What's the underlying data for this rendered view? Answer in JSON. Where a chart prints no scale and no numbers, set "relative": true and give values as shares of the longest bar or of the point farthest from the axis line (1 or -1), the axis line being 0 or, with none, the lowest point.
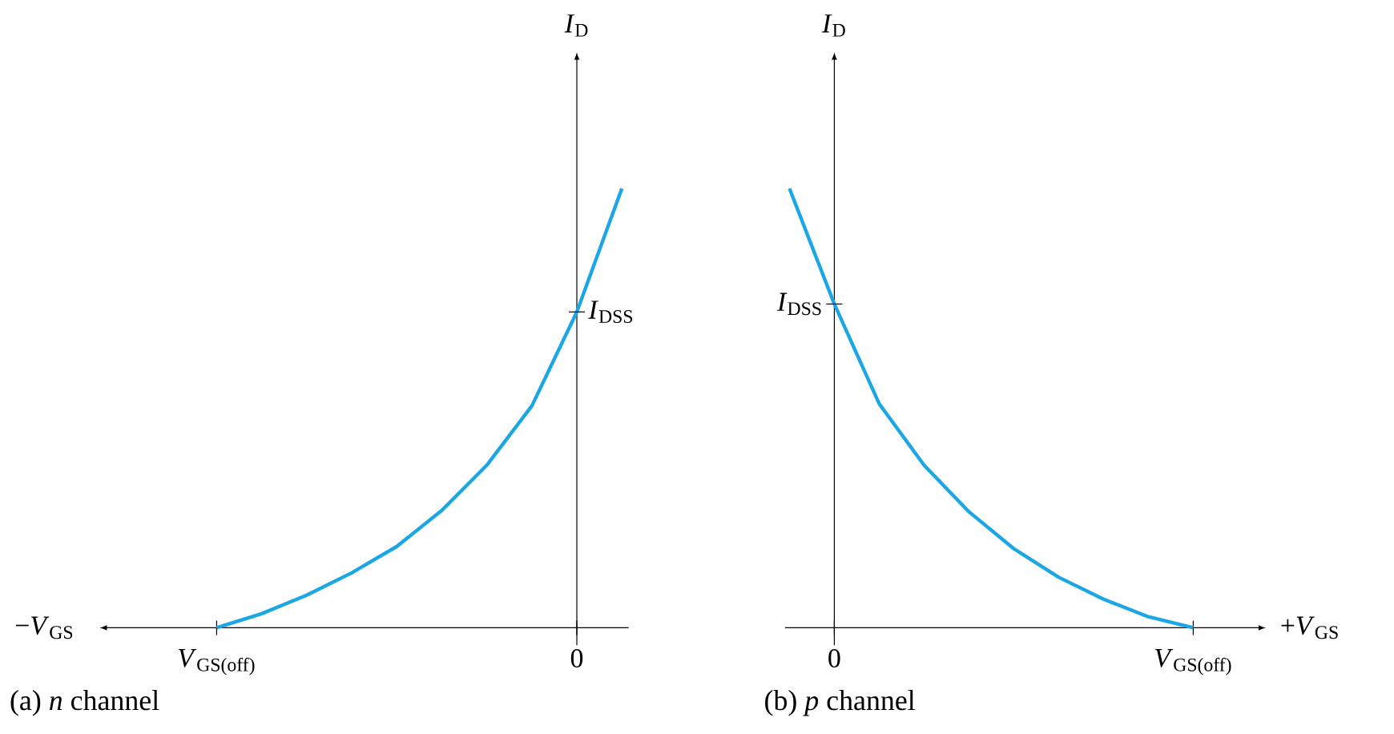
{
  "chart_data": [
    {
      "type": "line",
      "title": "(a) *n* channel",
      "xlabel": "−*V*$_{GS}$",
      "ylabel": "*I*$_{D}$",
      "relative": true,
      "categories": [
        "*V*$_{GS(off)}$",
        null,
        null,
        null,
        null,
        null,
        null,
        null,
        "0",
        null
      ],
      "series": [
        {
          "color": "#1ba6e4",
          "values": [
            0,
            0.032,
            0.074,
            0.125,
            0.185,
            0.267,
            0.37,
            0.505,
            0.719,
            1
          ]
        }
      ],
      "annotations": [
        {
          "text": "*I*$_{DSS}$",
          "x": "0",
          "y": 0.719
        }
      ]
    },
    {
      "type": "line",
      "title": "(b) *p* channel",
      "xlabel": "+*V*$_{GS}$",
      "ylabel": "*I*$_{D}$",
      "relative": true,
      "categories": [
        null,
        "0",
        null,
        null,
        null,
        null,
        null,
        null,
        null,
        "*V*$_{GS(off)}$"
      ],
      "series": [
        {
          "color": "#1ba6e4",
          "values": [
            1,
            0.737,
            0.51,
            0.37,
            0.264,
            0.18,
            0.115,
            0.065,
            0.025,
            0
          ]
        }
      ],
      "annotations": [
        {
          "text": "*I*$_{DSS}$",
          "x": "0",
          "y": 0.737
        }
      ]
    }
  ]
}
